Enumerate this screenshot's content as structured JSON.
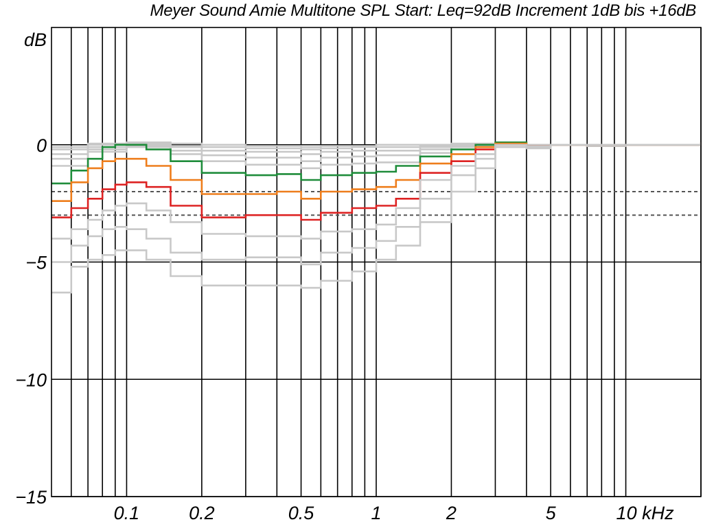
{
  "title": "Meyer Sound Amie Multitone SPL Start: Leq=92dB Increment 1dB bis +16dB",
  "chart_data": {
    "type": "line",
    "title": "Meyer Sound Amie Multitone SPL Start: Leq=92dB Increment 1dB bis +16dB",
    "ylabel": "dB",
    "xlabel": "kHz",
    "x_scale": "log",
    "xlim": [
      0.05,
      20
    ],
    "ylim": [
      -15,
      5
    ],
    "grid": true,
    "y_ticks": [
      {
        "value": 0,
        "label": "0"
      },
      {
        "value": -5,
        "label": "−5"
      },
      {
        "value": -10,
        "label": "−10"
      },
      {
        "value": -15,
        "label": "−15"
      }
    ],
    "x_ticks": [
      {
        "value": 0.1,
        "label": "0.1"
      },
      {
        "value": 0.2,
        "label": "0.2"
      },
      {
        "value": 0.5,
        "label": "0.5"
      },
      {
        "value": 1,
        "label": "1"
      },
      {
        "value": 2,
        "label": "2"
      },
      {
        "value": 5,
        "label": "5"
      },
      {
        "value": 10,
        "label": "10 kHz"
      }
    ],
    "x_gridlines": [
      0.06,
      0.07,
      0.08,
      0.09,
      0.1,
      0.2,
      0.3,
      0.4,
      0.5,
      0.6,
      0.7,
      0.8,
      0.9,
      1,
      2,
      3,
      4,
      5,
      6,
      7,
      8,
      9,
      10,
      20
    ],
    "reference_lines": [
      {
        "y": -2,
        "style": "dashed",
        "color": "#555555"
      },
      {
        "y": -3,
        "style": "dashed",
        "color": "#555555"
      }
    ],
    "colors": {
      "green": "#1e8c3a",
      "orange": "#ee7d1b",
      "red": "#dd2222",
      "gray": "#c8c8c8"
    },
    "series": [
      {
        "color": "#c8c8c8",
        "x": [
          0.05,
          0.07,
          0.1,
          0.15,
          0.2,
          0.3,
          0.4,
          0.5,
          0.6,
          0.8,
          1,
          1.5,
          2,
          3,
          5,
          10,
          20
        ],
        "y": [
          -0.1,
          0.05,
          0.1,
          0.05,
          0,
          -0.05,
          -0.05,
          -0.1,
          -0.05,
          -0.05,
          0,
          0,
          0.05,
          0,
          0,
          0,
          0.1
        ]
      },
      {
        "color": "#c8c8c8",
        "x": [
          0.05,
          0.07,
          0.1,
          0.15,
          0.2,
          0.3,
          0.4,
          0.5,
          0.6,
          0.8,
          1,
          1.5,
          2,
          3,
          5,
          10,
          20
        ],
        "y": [
          -0.2,
          0,
          0.05,
          -0.05,
          -0.1,
          -0.15,
          -0.15,
          -0.2,
          -0.15,
          -0.1,
          -0.1,
          -0.05,
          0,
          0,
          0,
          0,
          0.1
        ]
      },
      {
        "color": "#c8c8c8",
        "x": [
          0.05,
          0.07,
          0.1,
          0.15,
          0.2,
          0.3,
          0.4,
          0.5,
          0.6,
          0.8,
          1,
          1.5,
          2,
          3,
          5,
          10,
          20
        ],
        "y": [
          -0.4,
          -0.1,
          0,
          -0.1,
          -0.25,
          -0.3,
          -0.3,
          -0.4,
          -0.3,
          -0.25,
          -0.25,
          -0.1,
          0,
          0,
          0,
          0,
          0.1
        ]
      },
      {
        "color": "#c8c8c8",
        "x": [
          0.05,
          0.07,
          0.1,
          0.15,
          0.2,
          0.3,
          0.4,
          0.5,
          0.6,
          0.8,
          1,
          1.5,
          2,
          3,
          5,
          10,
          20
        ],
        "y": [
          -0.6,
          -0.2,
          -0.05,
          -0.25,
          -0.45,
          -0.55,
          -0.55,
          -0.7,
          -0.55,
          -0.5,
          -0.45,
          -0.2,
          -0.05,
          0,
          0,
          0,
          0.1
        ]
      },
      {
        "color": "#c8c8c8",
        "x": [
          0.05,
          0.07,
          0.1,
          0.15,
          0.2,
          0.3,
          0.4,
          0.5,
          0.6,
          0.8,
          1,
          1.5,
          2,
          3,
          5,
          10,
          20
        ],
        "y": [
          -0.9,
          -0.3,
          -0.1,
          -0.4,
          -0.7,
          -0.85,
          -0.85,
          -1.0,
          -0.85,
          -0.8,
          -0.75,
          -0.35,
          -0.1,
          0,
          0,
          0,
          0.1
        ]
      },
      {
        "color": "#1e8c3a",
        "x": [
          0.05,
          0.06,
          0.07,
          0.08,
          0.09,
          0.1,
          0.12,
          0.15,
          0.2,
          0.3,
          0.4,
          0.5,
          0.6,
          0.8,
          1,
          1.2,
          1.5,
          2,
          2.5,
          3,
          4,
          5,
          7,
          10,
          15,
          20
        ],
        "y": [
          -1.65,
          -1.1,
          -0.6,
          -0.1,
          0,
          0,
          -0.2,
          -0.7,
          -1.2,
          -1.3,
          -1.25,
          -1.5,
          -1.3,
          -1.2,
          -1.15,
          -0.9,
          -0.5,
          -0.2,
          0,
          0.1,
          -0.05,
          0,
          -0.05,
          0,
          0,
          0.1
        ]
      },
      {
        "color": "#ee7d1b",
        "x": [
          0.05,
          0.06,
          0.07,
          0.08,
          0.09,
          0.1,
          0.12,
          0.15,
          0.2,
          0.3,
          0.4,
          0.5,
          0.6,
          0.8,
          1,
          1.2,
          1.5,
          2,
          2.5,
          3,
          4,
          5,
          7,
          10,
          15,
          20
        ],
        "y": [
          -2.4,
          -1.6,
          -1.0,
          -0.7,
          -0.6,
          -0.6,
          -0.9,
          -1.5,
          -2.1,
          -2.1,
          -2.0,
          -2.3,
          -2.0,
          -1.9,
          -1.8,
          -1.5,
          -0.8,
          -0.4,
          -0.1,
          0.05,
          -0.05,
          0,
          -0.05,
          0,
          0,
          0.1
        ]
      },
      {
        "color": "#dd2222",
        "x": [
          0.05,
          0.06,
          0.07,
          0.08,
          0.09,
          0.1,
          0.12,
          0.15,
          0.2,
          0.3,
          0.4,
          0.5,
          0.6,
          0.8,
          1,
          1.2,
          1.5,
          2,
          2.5,
          3,
          4,
          5,
          7,
          10,
          15,
          20
        ],
        "y": [
          -3.1,
          -2.7,
          -2.3,
          -1.9,
          -1.7,
          -1.6,
          -1.8,
          -2.6,
          -3.1,
          -3.0,
          -3.0,
          -3.2,
          -2.9,
          -2.7,
          -2.6,
          -2.3,
          -1.2,
          -0.7,
          -0.2,
          0,
          -0.05,
          0,
          -0.05,
          0,
          0,
          0.1
        ]
      },
      {
        "color": "#c8c8c8",
        "x": [
          0.05,
          0.06,
          0.07,
          0.08,
          0.09,
          0.1,
          0.12,
          0.15,
          0.2,
          0.3,
          0.4,
          0.5,
          0.6,
          0.8,
          1,
          1.2,
          1.5,
          2,
          2.5,
          3,
          4,
          5,
          7,
          10,
          15,
          20
        ],
        "y": [
          -4.0,
          -3.6,
          -3.2,
          -2.8,
          -2.6,
          -2.5,
          -2.8,
          -3.3,
          -3.8,
          -3.9,
          -3.9,
          -4.0,
          -3.7,
          -3.6,
          -3.4,
          -2.7,
          -1.5,
          -0.9,
          -0.4,
          0,
          -0.05,
          0,
          -0.05,
          0,
          0,
          0.1
        ]
      },
      {
        "color": "#c8c8c8",
        "x": [
          0.05,
          0.06,
          0.07,
          0.08,
          0.09,
          0.1,
          0.12,
          0.15,
          0.2,
          0.3,
          0.4,
          0.5,
          0.6,
          0.8,
          1,
          1.2,
          1.5,
          2,
          2.5,
          3,
          4,
          5,
          7,
          10,
          15,
          20
        ],
        "y": [
          -5.0,
          -4.3,
          -3.9,
          -3.6,
          -3.5,
          -3.6,
          -4.0,
          -4.6,
          -4.9,
          -4.8,
          -4.8,
          -5.1,
          -4.6,
          -4.4,
          -4.1,
          -3.5,
          -2.3,
          -1.3,
          -0.6,
          0,
          -0.1,
          0,
          -0.05,
          0,
          0,
          0.1
        ]
      },
      {
        "color": "#c8c8c8",
        "x": [
          0.05,
          0.06,
          0.07,
          0.08,
          0.09,
          0.1,
          0.12,
          0.15,
          0.2,
          0.3,
          0.4,
          0.5,
          0.6,
          0.8,
          1,
          1.2,
          1.5,
          2,
          2.5,
          3,
          4,
          5,
          7,
          10,
          15,
          20
        ],
        "y": [
          -6.3,
          -5.2,
          -4.9,
          -4.7,
          -4.5,
          -4.5,
          -4.9,
          -5.6,
          -6.0,
          -6.0,
          -6.0,
          -6.1,
          -5.8,
          -5.4,
          -4.9,
          -4.3,
          -3.3,
          -2.0,
          -1.0,
          -0.1,
          -0.15,
          0,
          -0.05,
          0,
          0,
          0.1
        ]
      }
    ]
  }
}
